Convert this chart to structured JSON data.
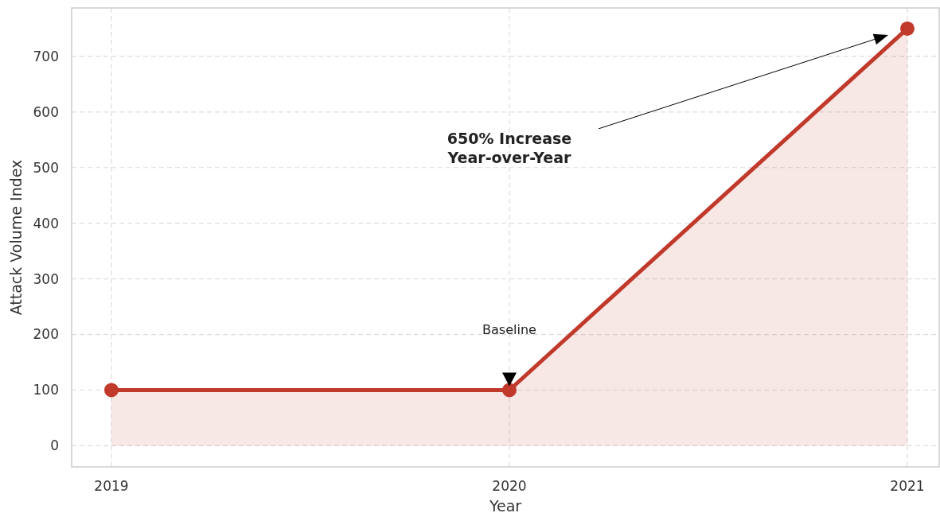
{
  "chart_data": {
    "type": "area",
    "xlabel": "Year",
    "ylabel": "Attack Volume Index",
    "x": [
      2019,
      2020,
      2021
    ],
    "series": [
      {
        "color": "#c0392b",
        "values": [
          100,
          100,
          750
        ]
      }
    ],
    "xlim": [
      2018.9,
      2021.08
    ],
    "xticks": [
      2019,
      2020,
      2021
    ],
    "ylim": [
      -38,
      787
    ],
    "yticks": [
      0,
      100,
      200,
      300,
      400,
      500,
      600,
      700
    ],
    "grid": true,
    "marker": "circle",
    "line_style": "solid",
    "annotations": [
      "650% Increase\nYear-over-Year",
      "Baseline"
    ]
  }
}
